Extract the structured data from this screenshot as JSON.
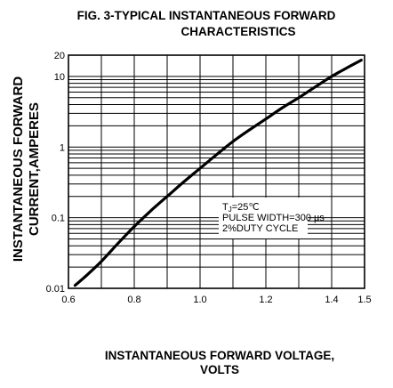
{
  "chart_data": {
    "type": "line",
    "title": [
      "FIG. 3-TYPICAL INSTANTANEOUS FORWARD",
      "CHARACTERISTICS"
    ],
    "xlabel": [
      "INSTANTANEOUS FORWARD VOLTAGE,",
      "VOLTS"
    ],
    "ylabel": [
      "INSTANTANEOUS FORWARD",
      "CURRENT,AMPERES"
    ],
    "xlim": [
      0.6,
      1.5
    ],
    "ylim": [
      0.01,
      20
    ],
    "yscale": "log",
    "grid": true,
    "xticks": [
      0.6,
      0.8,
      1.0,
      1.2,
      1.4,
      1.5
    ],
    "xtick_labels": [
      "0.6",
      "0.8",
      "1.0",
      "1.2",
      "1.4",
      "1.5"
    ],
    "yticks": [
      0.01,
      0.1,
      1,
      10,
      20
    ],
    "ytick_labels": [
      "0.01",
      "0.1",
      "1",
      "10",
      "20"
    ],
    "annotation": [
      "TJ=25℃",
      "PULSE WIDTH=300 µs",
      "2%DUTY CYCLE"
    ],
    "series": [
      {
        "x": [
          0.62,
          0.66,
          0.7,
          0.75,
          0.8,
          0.85,
          0.9,
          0.95,
          1.0,
          1.05,
          1.1,
          1.15,
          1.2,
          1.25,
          1.3,
          1.35,
          1.4,
          1.45,
          1.49
        ],
        "y": [
          0.011,
          0.016,
          0.024,
          0.043,
          0.075,
          0.125,
          0.2,
          0.32,
          0.5,
          0.78,
          1.2,
          1.75,
          2.5,
          3.6,
          5.0,
          7.1,
          10.0,
          13.5,
          17.0
        ]
      }
    ]
  }
}
